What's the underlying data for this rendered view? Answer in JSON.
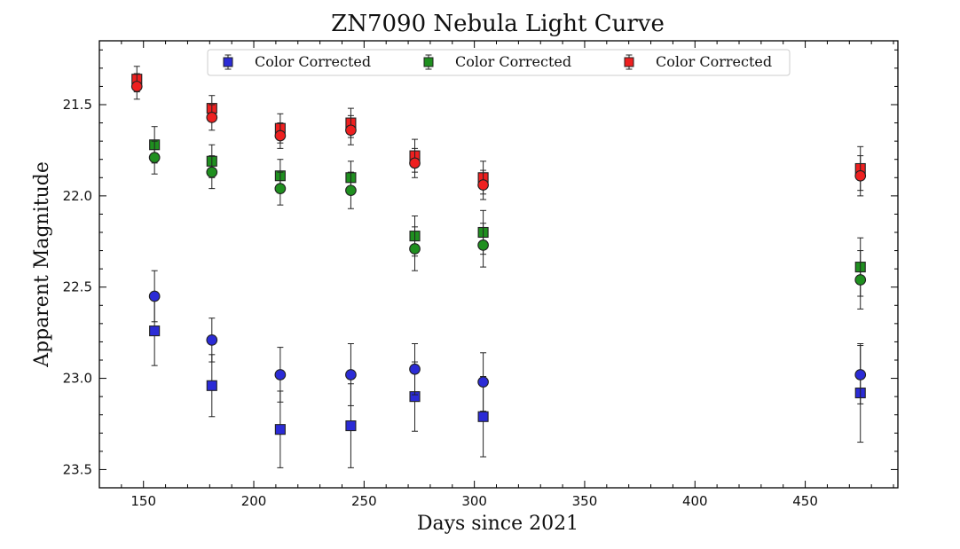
{
  "chart_data": {
    "type": "scatter",
    "title": "ZN7090 Nebula Light Curve",
    "xlabel": "Days since 2021",
    "ylabel": "Apparent Magnitude",
    "xlim": [
      130,
      492
    ],
    "ylim": [
      23.6,
      21.15
    ],
    "y_inverted": true,
    "xticks": [
      150,
      200,
      250,
      300,
      350,
      400,
      450
    ],
    "yticks": [
      21.5,
      22.0,
      22.5,
      23.0,
      23.5
    ],
    "xtick_labels": [
      "150",
      "200",
      "250",
      "300",
      "350",
      "400",
      "450"
    ],
    "ytick_labels": [
      "21.5",
      "22.0",
      "22.5",
      "23.0",
      "23.5"
    ],
    "grid": false,
    "legend_position": "top-center",
    "series": [
      {
        "name": "Color Corrected",
        "color": "#2b2bd6",
        "marker": "square",
        "in_legend": true,
        "points": [
          {
            "x": 155,
            "y": 22.74,
            "err": 0.19
          },
          {
            "x": 181,
            "y": 23.04,
            "err": 0.17
          },
          {
            "x": 212,
            "y": 23.28,
            "err": 0.21
          },
          {
            "x": 244,
            "y": 23.26,
            "err": 0.23
          },
          {
            "x": 273,
            "y": 23.1,
            "err": 0.19
          },
          {
            "x": 304,
            "y": 23.21,
            "err": 0.22
          },
          {
            "x": 475,
            "y": 23.08,
            "err": 0.27
          }
        ]
      },
      {
        "name": "Color Corrected",
        "color": "#1f8f1f",
        "marker": "square",
        "in_legend": true,
        "points": [
          {
            "x": 155,
            "y": 21.72,
            "err": 0.1
          },
          {
            "x": 181,
            "y": 21.81,
            "err": 0.09
          },
          {
            "x": 212,
            "y": 21.89,
            "err": 0.09
          },
          {
            "x": 244,
            "y": 21.9,
            "err": 0.09
          },
          {
            "x": 273,
            "y": 22.22,
            "err": 0.11
          },
          {
            "x": 304,
            "y": 22.2,
            "err": 0.12
          },
          {
            "x": 475,
            "y": 22.39,
            "err": 0.16
          }
        ]
      },
      {
        "name": "Color Corrected",
        "color": "#ee2020",
        "marker": "square",
        "in_legend": true,
        "points": [
          {
            "x": 147,
            "y": 21.36,
            "err": 0.07
          },
          {
            "x": 181,
            "y": 21.52,
            "err": 0.07
          },
          {
            "x": 212,
            "y": 21.63,
            "err": 0.08
          },
          {
            "x": 244,
            "y": 21.6,
            "err": 0.08
          },
          {
            "x": 273,
            "y": 21.78,
            "err": 0.09
          },
          {
            "x": 304,
            "y": 21.9,
            "err": 0.09
          },
          {
            "x": 475,
            "y": 21.85,
            "err": 0.12
          }
        ]
      },
      {
        "color": "#2b2bd6",
        "marker": "circle",
        "in_legend": false,
        "points": [
          {
            "x": 155,
            "y": 22.55,
            "err": 0.14
          },
          {
            "x": 181,
            "y": 22.79,
            "err": 0.12
          },
          {
            "x": 212,
            "y": 22.98,
            "err": 0.15
          },
          {
            "x": 244,
            "y": 22.98,
            "err": 0.17
          },
          {
            "x": 273,
            "y": 22.95,
            "err": 0.14
          },
          {
            "x": 304,
            "y": 23.02,
            "err": 0.16
          },
          {
            "x": 475,
            "y": 22.98,
            "err": 0.16
          }
        ]
      },
      {
        "color": "#1f8f1f",
        "marker": "circle",
        "in_legend": false,
        "points": [
          {
            "x": 155,
            "y": 21.79,
            "err": 0.09
          },
          {
            "x": 181,
            "y": 21.87,
            "err": 0.09
          },
          {
            "x": 212,
            "y": 21.96,
            "err": 0.09
          },
          {
            "x": 244,
            "y": 21.97,
            "err": 0.1
          },
          {
            "x": 273,
            "y": 22.29,
            "err": 0.12
          },
          {
            "x": 304,
            "y": 22.27,
            "err": 0.12
          },
          {
            "x": 475,
            "y": 22.46,
            "err": 0.16
          }
        ]
      },
      {
        "color": "#ee2020",
        "marker": "circle",
        "in_legend": false,
        "points": [
          {
            "x": 147,
            "y": 21.4,
            "err": 0.07
          },
          {
            "x": 181,
            "y": 21.57,
            "err": 0.07
          },
          {
            "x": 212,
            "y": 21.67,
            "err": 0.07
          },
          {
            "x": 244,
            "y": 21.64,
            "err": 0.08
          },
          {
            "x": 273,
            "y": 21.82,
            "err": 0.08
          },
          {
            "x": 304,
            "y": 21.94,
            "err": 0.08
          },
          {
            "x": 475,
            "y": 21.89,
            "err": 0.11
          }
        ]
      }
    ]
  }
}
